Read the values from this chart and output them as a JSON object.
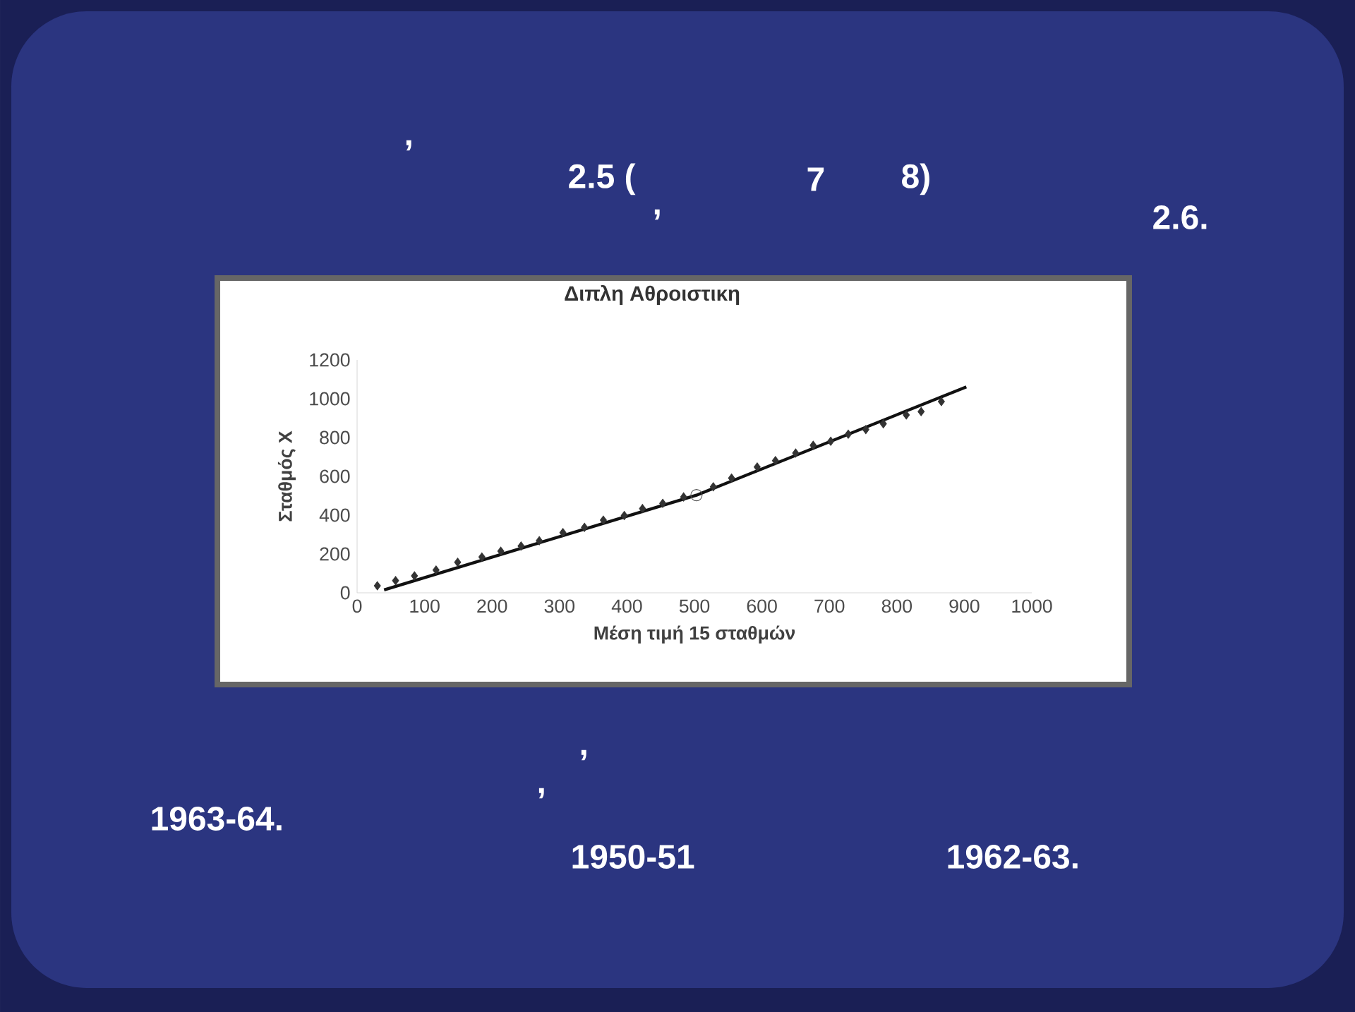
{
  "chart_data": {
    "type": "scatter",
    "title": "Διπλη Αθροιστικη",
    "xlabel": "Μέση τιμή 15 σταθμών",
    "ylabel": "Σταθμός Χ",
    "annotations": [
      ",",
      "2.5 (",
      "7",
      "8)",
      ",",
      "2.6.",
      ",",
      ",",
      "1963-64.",
      "1950-51",
      "1962-63."
    ],
    "xlim": [
      0,
      1000
    ],
    "ylim": [
      0,
      1200
    ],
    "xticks": [
      0,
      100,
      200,
      300,
      400,
      500,
      600,
      700,
      800,
      900,
      1000
    ],
    "yticks": [
      0,
      200,
      400,
      600,
      800,
      1000,
      1200
    ],
    "grid": false,
    "series": [
      {
        "marker": "diamond",
        "color": "#333333",
        "x": [
          30,
          57,
          85,
          117,
          149,
          185,
          213,
          243,
          270,
          305,
          337,
          365,
          396,
          423,
          453,
          484,
          528,
          555,
          593,
          620,
          650,
          676,
          702,
          728,
          754,
          780,
          814,
          836,
          866
        ],
        "values": [
          36,
          63,
          87,
          117,
          157,
          184,
          214,
          241,
          268,
          310,
          337,
          374,
          398,
          434,
          461,
          494,
          546,
          591,
          648,
          681,
          720,
          760,
          781,
          817,
          841,
          871,
          916,
          934,
          985
        ]
      },
      {
        "marker": "circle",
        "color": "#555555",
        "x": [
          503
        ],
        "values": [
          503
        ]
      },
      {
        "type": "line",
        "marker": "none",
        "color": "#111111",
        "x": [
          40,
          503,
          903
        ],
        "values": [
          15,
          503,
          1061
        ]
      }
    ]
  }
}
